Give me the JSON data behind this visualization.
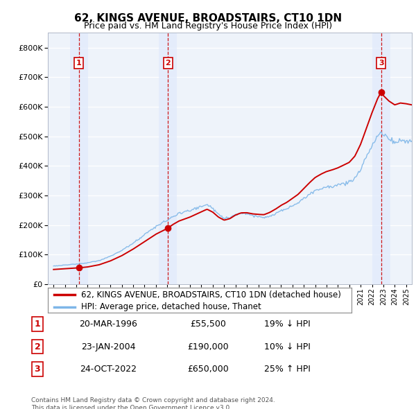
{
  "title": "62, KINGS AVENUE, BROADSTAIRS, CT10 1DN",
  "subtitle": "Price paid vs. HM Land Registry's House Price Index (HPI)",
  "transactions": [
    {
      "date": "20-MAR-1996",
      "price": 55500,
      "label": "1",
      "hpi_diff": "19% ↓ HPI"
    },
    {
      "date": "23-JAN-2004",
      "price": 190000,
      "label": "2",
      "hpi_diff": "10% ↓ HPI"
    },
    {
      "date": "24-OCT-2022",
      "price": 650000,
      "label": "3",
      "hpi_diff": "25% ↑ HPI"
    }
  ],
  "transaction_years": [
    1996.22,
    2004.06,
    2022.81
  ],
  "transaction_prices": [
    55500,
    190000,
    650000
  ],
  "hpi_line_color": "#7EB6E8",
  "price_line_color": "#CC0000",
  "dot_color": "#CC0000",
  "vline_color": "#CC0000",
  "ylim": [
    0,
    850000
  ],
  "xlim_start": 1993.5,
  "xlim_end": 2025.5,
  "footnote": "Contains HM Land Registry data © Crown copyright and database right 2024.\nThis data is licensed under the Open Government Licence v3.0.",
  "legend_label_1": "62, KINGS AVENUE, BROADSTAIRS, CT10 1DN (detached house)",
  "legend_label_2": "HPI: Average price, detached house, Thanet",
  "plot_bg_color": "#EEF3FA",
  "shade_color": "#D8E5F5",
  "vspan_color": "#E0EAFC"
}
